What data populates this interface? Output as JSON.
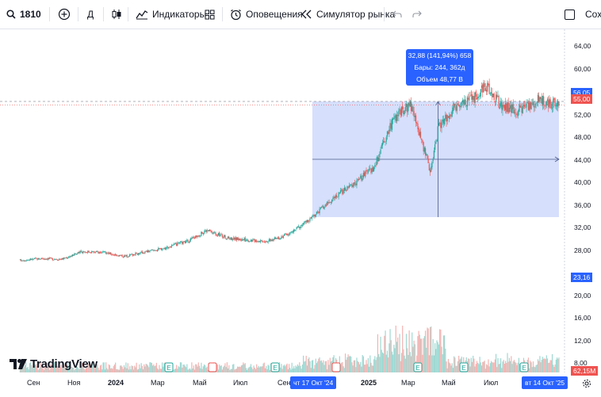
{
  "toolbar": {
    "symbol": "1810",
    "interval": "Д",
    "indicators_label": "Индикаторы",
    "alerts_label": "Оповещения",
    "replay_label": "Симулятор рынка",
    "save_label": "Сохр"
  },
  "tooltip": {
    "line1": "32,88 (141,94%) 658",
    "line2": "Бары: 244, 362д",
    "line3": "Объем 48,77 B"
  },
  "price_axis": {
    "ticks": [
      "64,00",
      "60,00",
      "56,00",
      "52,00",
      "48,00",
      "44,00",
      "40,00",
      "36,00",
      "32,00",
      "28,00",
      "24,00",
      "20,00",
      "16,00",
      "12,00",
      "8,00"
    ],
    "top_marker": "56,05",
    "last_price": "55,00",
    "bottom_marker": "23,16",
    "volume_marker": "62,15M"
  },
  "time_axis": {
    "labels": [
      "Сен",
      "Ноя",
      "2024",
      "Мар",
      "Май",
      "Июл",
      "Сен",
      "2025",
      "Мар",
      "Май",
      "Июл"
    ],
    "range_start": "чт 17 Окт '24",
    "range_end": "вт 14 Окт '25"
  },
  "brand": {
    "name": "TradingView"
  },
  "colors": {
    "up": "#26a69a",
    "down": "#ef5350",
    "accent": "#2962ff",
    "range_fill": "#cfd9fb"
  },
  "chart_data": {
    "type": "candlestick",
    "symbol": "1810",
    "y_range": [
      7,
      66
    ],
    "measure_range": {
      "from_date": "2024-10-17",
      "to_date": "2025-10-14",
      "from_price": 23.16,
      "to_price": 56.05
    },
    "close_path": [
      [
        "2023-08-15",
        10.9
      ],
      [
        "2023-09-15",
        11.4
      ],
      [
        "2023-10-15",
        11.2
      ],
      [
        "2023-11-15",
        13.4
      ],
      [
        "2023-12-15",
        13.1
      ],
      [
        "2024-01-15",
        12.0
      ],
      [
        "2024-02-15",
        13.3
      ],
      [
        "2024-03-15",
        14.4
      ],
      [
        "2024-04-15",
        16.2
      ],
      [
        "2024-05-15",
        19.4
      ],
      [
        "2024-06-15",
        17.2
      ],
      [
        "2024-07-15",
        16.6
      ],
      [
        "2024-08-15",
        16.4
      ],
      [
        "2024-09-15",
        18.6
      ],
      [
        "2024-10-17",
        23.2
      ],
      [
        "2024-11-15",
        28.3
      ],
      [
        "2024-12-15",
        32.4
      ],
      [
        "2025-01-15",
        37.0
      ],
      [
        "2025-02-15",
        51.8
      ],
      [
        "2025-03-10",
        55.2
      ],
      [
        "2025-04-08",
        36.5
      ],
      [
        "2025-04-20",
        48.5
      ],
      [
        "2025-05-15",
        54.4
      ],
      [
        "2025-06-15",
        57.3
      ],
      [
        "2025-06-28",
        60.5
      ],
      [
        "2025-07-20",
        55.2
      ],
      [
        "2025-08-15",
        53.2
      ],
      [
        "2025-09-15",
        56.6
      ],
      [
        "2025-10-14",
        55.0
      ]
    ],
    "events_markers": 9
  }
}
